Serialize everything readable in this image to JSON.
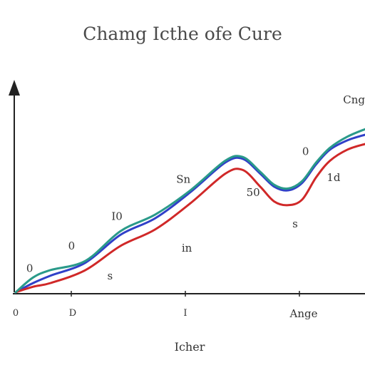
{
  "chart_data": {
    "type": "line",
    "title": "Chamg Icthe ofe Cure",
    "xlabel": "Icher",
    "ylabel": "",
    "grid": false,
    "x_tick_labels": [
      "0",
      "D",
      "I",
      "Ange"
    ],
    "series": [
      {
        "color": "#3040c8",
        "x": [
          0,
          5,
          10,
          20,
          30,
          40,
          50,
          60,
          65,
          70,
          74,
          78,
          82,
          86,
          90,
          95,
          100
        ],
        "y": [
          0,
          5,
          9,
          16,
          31,
          40,
          54,
          70,
          72,
          64,
          57,
          55,
          59,
          69,
          77,
          82,
          85
        ]
      },
      {
        "color": "#d02828",
        "x": [
          0,
          5,
          10,
          20,
          30,
          40,
          50,
          60,
          65,
          70,
          74,
          78,
          82,
          86,
          90,
          95,
          100
        ],
        "y": [
          0,
          3,
          5,
          12,
          25,
          34,
          48,
          64,
          66,
          57,
          49,
          47,
          50,
          62,
          71,
          77,
          80
        ]
      },
      {
        "color": "#2a9a8a",
        "x": [
          0,
          5,
          10,
          20,
          30,
          40,
          50,
          60,
          65,
          70,
          74,
          78,
          82,
          86,
          90,
          95,
          100
        ],
        "y": [
          0,
          8,
          12,
          17,
          33,
          42,
          55,
          71,
          73,
          65,
          58,
          56,
          60,
          70,
          78,
          84,
          88
        ]
      }
    ],
    "annotations": [
      {
        "text": "Cng",
        "x": 100,
        "y": 102
      },
      {
        "text": "0",
        "x": 83,
        "y": 74
      },
      {
        "text": "Sn",
        "x": 48,
        "y": 59
      },
      {
        "text": "1d",
        "x": 91,
        "y": 60
      },
      {
        "text": "50",
        "x": 68,
        "y": 52
      },
      {
        "text": "I0",
        "x": 29,
        "y": 39
      },
      {
        "text": "in",
        "x": 49,
        "y": 22
      },
      {
        "text": "0",
        "x": 16,
        "y": 23
      },
      {
        "text": "0",
        "x": 4,
        "y": 11
      },
      {
        "text": "s",
        "x": 80,
        "y": 35
      },
      {
        "text": "s",
        "x": 27,
        "y": 7
      }
    ]
  }
}
